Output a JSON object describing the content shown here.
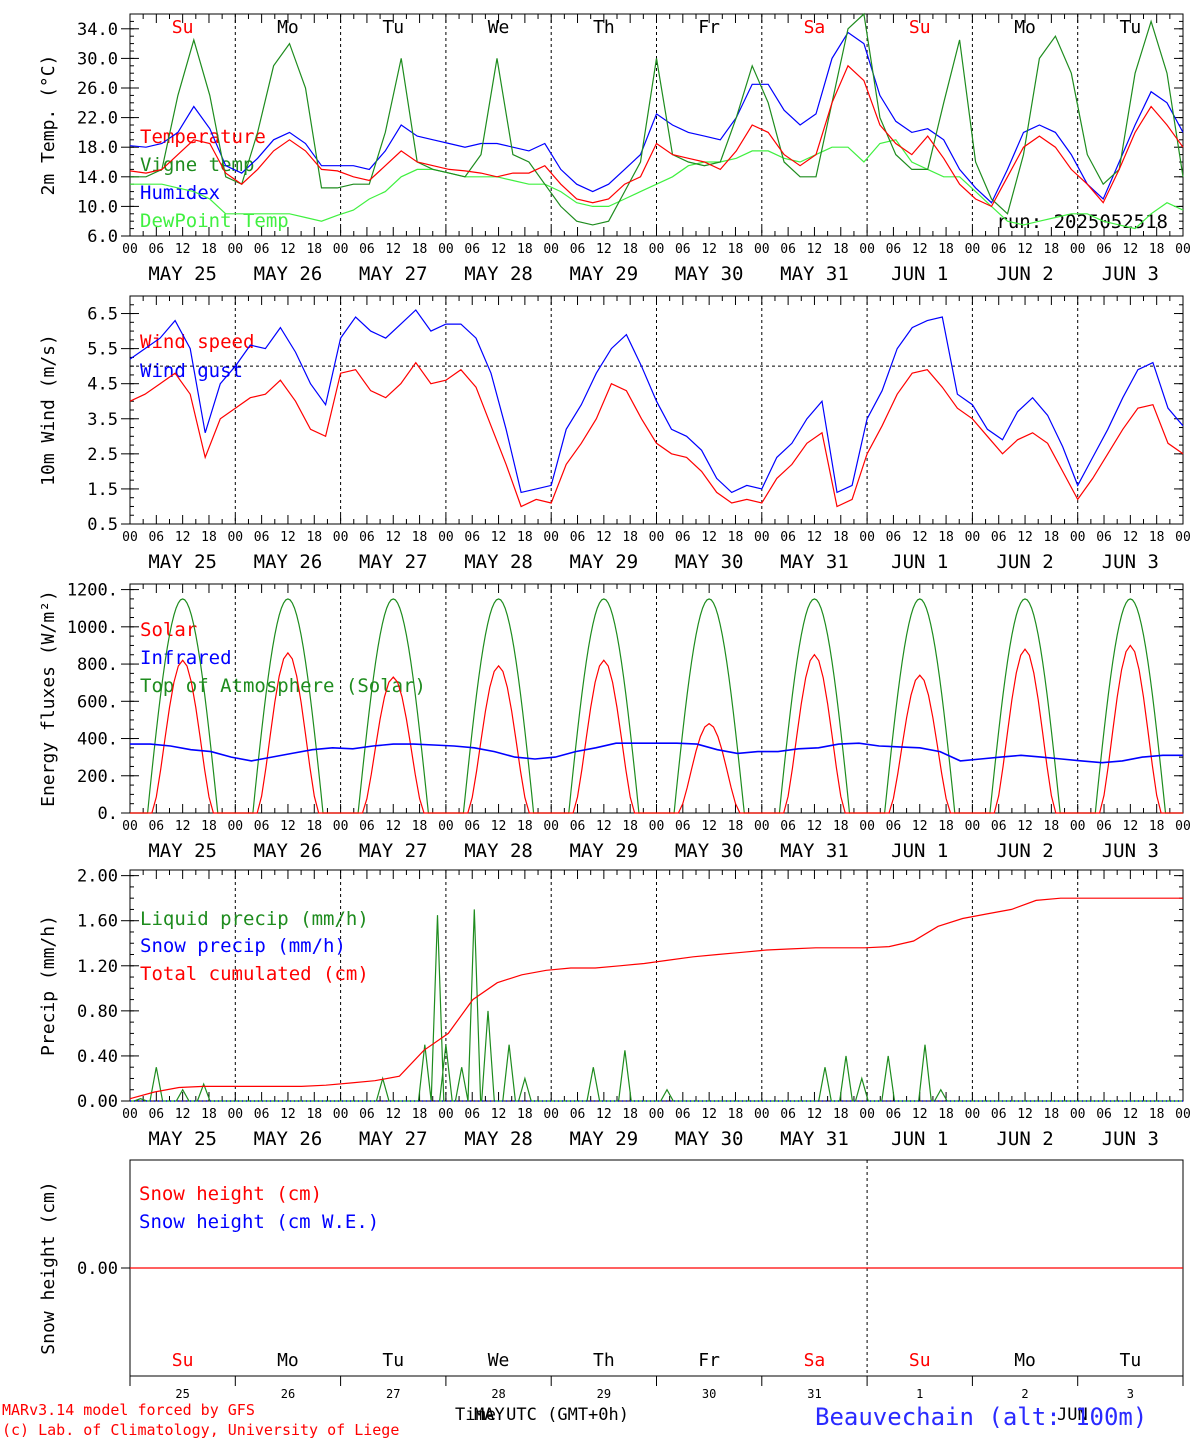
{
  "chart_data": [
    {
      "type": "line",
      "ylabel": "2m Temp. (°C)",
      "ylim": [
        6,
        36
      ],
      "yticks": [
        "6.0",
        "10.0",
        "14.0",
        "18.0",
        "22.0",
        "26.0",
        "30.0",
        "34.0"
      ],
      "annotation": "run: 2025052518",
      "weekdays": [
        {
          "label": "Su",
          "color": "#ff0000"
        },
        {
          "label": "Mo",
          "color": "#000000"
        },
        {
          "label": "Tu",
          "color": "#000000"
        },
        {
          "label": "We",
          "color": "#000000"
        },
        {
          "label": "Th",
          "color": "#000000"
        },
        {
          "label": "Fr",
          "color": "#000000"
        },
        {
          "label": "Sa",
          "color": "#ff0000"
        },
        {
          "label": "Su",
          "color": "#ff0000"
        },
        {
          "label": "Mo",
          "color": "#000000"
        },
        {
          "label": "Tu",
          "color": "#000000"
        }
      ],
      "series": [
        {
          "name": "Temperature",
          "color": "#ff0000",
          "values": [
            14.8,
            14.5,
            15,
            17,
            19,
            18.5,
            14.5,
            13,
            15,
            17.5,
            19,
            17.5,
            15,
            14.8,
            14,
            13.5,
            15.5,
            17.5,
            16,
            15.5,
            15,
            14.8,
            14.5,
            14,
            14.5,
            14.5,
            15.5,
            13,
            11,
            10.5,
            11,
            13,
            14,
            18.5,
            17,
            16.5,
            16,
            15,
            17.5,
            21,
            20,
            17,
            15.5,
            17,
            24,
            29,
            27,
            21,
            18.5,
            17,
            19.5,
            16.5,
            13,
            11,
            10,
            14,
            18,
            19.5,
            18,
            15,
            13,
            10.5,
            15,
            20,
            23.5,
            21,
            18
          ]
        },
        {
          "name": "Vigne temp",
          "color": "#1e8c1e",
          "values": [
            14,
            14,
            15,
            25,
            32.5,
            25,
            14,
            13,
            20,
            29,
            32,
            26,
            12.5,
            12.5,
            13,
            13,
            20,
            30,
            16,
            15,
            14.5,
            14,
            17,
            30,
            17,
            16,
            13,
            10,
            8,
            7.5,
            8,
            12,
            16,
            30,
            17,
            16,
            15.5,
            16,
            22,
            29,
            24,
            16,
            14,
            14,
            24,
            34,
            38,
            22,
            17,
            15,
            15,
            24,
            32.5,
            16,
            11,
            9,
            17,
            30,
            33,
            28,
            17,
            13,
            15,
            28,
            35,
            28,
            14
          ]
        },
        {
          "name": "Humidex",
          "color": "#0000ff",
          "values": [
            18.2,
            18,
            18.5,
            20,
            23.5,
            20.5,
            15.5,
            14.5,
            16.5,
            19,
            20,
            18.5,
            15.5,
            15.5,
            15.5,
            15,
            17.5,
            21,
            19.5,
            19,
            18.5,
            18,
            18.5,
            18.5,
            18,
            17.5,
            18.5,
            15,
            13,
            12,
            13,
            15,
            17,
            22.5,
            21,
            20,
            19.5,
            19,
            22,
            26.5,
            26.5,
            23,
            21,
            22.5,
            30,
            33.5,
            32,
            25,
            21.5,
            20,
            20.5,
            19,
            15,
            12.5,
            10.5,
            15,
            20,
            21,
            20,
            17,
            13,
            11,
            16,
            21,
            25.5,
            24,
            20
          ]
        },
        {
          "name": "DewPoint Temp",
          "color": "#40f040",
          "values": [
            13,
            13,
            13,
            12.5,
            12,
            11,
            9,
            9,
            9,
            9,
            9,
            8.5,
            8,
            8.8,
            9.5,
            11,
            12,
            14,
            15,
            15,
            14.5,
            14,
            14,
            14,
            13.5,
            13,
            13,
            12,
            10.5,
            10,
            10,
            11,
            12,
            13,
            14,
            15.5,
            16,
            16,
            16.5,
            17.5,
            17.5,
            16.5,
            16,
            17,
            18,
            18,
            16,
            18.5,
            19,
            16,
            15,
            14,
            14,
            12,
            10,
            8,
            7.5,
            8,
            8.5,
            9,
            9,
            8,
            7.5,
            7,
            9,
            10.5,
            9.5
          ]
        }
      ]
    },
    {
      "type": "line",
      "ylabel": "10m Wind (m/s)",
      "ylim": [
        0.5,
        7.0
      ],
      "yticks": [
        "0.5",
        "1.5",
        "2.5",
        "3.5",
        "4.5",
        "5.5",
        "6.5"
      ],
      "reference_line": 5.0,
      "series": [
        {
          "name": "Wind speed",
          "color": "#ff0000",
          "values": [
            4,
            4.2,
            4.5,
            4.8,
            4.2,
            2.4,
            3.5,
            3.8,
            4.1,
            4.2,
            4.6,
            4,
            3.2,
            3,
            4.8,
            4.9,
            4.3,
            4.1,
            4.5,
            5.1,
            4.5,
            4.6,
            4.9,
            4.4,
            3.3,
            2.2,
            1.0,
            1.2,
            1.1,
            2.2,
            2.8,
            3.5,
            4.5,
            4.3,
            3.5,
            2.8,
            2.5,
            2.4,
            2.0,
            1.4,
            1.1,
            1.2,
            1.1,
            1.8,
            2.2,
            2.8,
            3.1,
            1.0,
            1.2,
            2.5,
            3.3,
            4.2,
            4.8,
            4.9,
            4.4,
            3.8,
            3.5,
            3.0,
            2.5,
            2.9,
            3.1,
            2.8,
            2.0,
            1.2,
            1.8,
            2.5,
            3.2,
            3.8,
            3.9,
            2.8,
            2.5
          ]
        },
        {
          "name": "Wind gust",
          "color": "#0000ff",
          "values": [
            5.2,
            5.5,
            5.8,
            6.3,
            5.5,
            3.1,
            4.5,
            5.0,
            5.6,
            5.5,
            6.1,
            5.4,
            4.5,
            3.9,
            5.8,
            6.4,
            6.0,
            5.8,
            6.2,
            6.6,
            6.0,
            6.2,
            6.2,
            5.8,
            4.8,
            3.2,
            1.4,
            1.5,
            1.6,
            3.2,
            3.9,
            4.8,
            5.5,
            5.9,
            5.0,
            4.0,
            3.2,
            3.0,
            2.6,
            1.8,
            1.4,
            1.6,
            1.5,
            2.4,
            2.8,
            3.5,
            4.0,
            1.4,
            1.6,
            3.5,
            4.3,
            5.5,
            6.1,
            6.3,
            6.4,
            4.2,
            3.9,
            3.2,
            2.9,
            3.7,
            4.1,
            3.6,
            2.7,
            1.6,
            2.4,
            3.2,
            4.1,
            4.9,
            5.1,
            3.8,
            3.3
          ]
        }
      ]
    },
    {
      "type": "line",
      "ylabel": "Energy fluxes (W/m²)",
      "ylim": [
        0,
        1200
      ],
      "yticks": [
        "0.",
        "200.",
        "400.",
        "600.",
        "800.",
        "1000.",
        "1200."
      ],
      "series": [
        {
          "name": "Solar",
          "color": "#ff0000",
          "peaks": [
            820,
            860,
            730,
            790,
            820,
            480,
            850,
            740,
            880,
            900
          ]
        },
        {
          "name": "Infrared",
          "color": "#0000ff",
          "values": [
            370,
            370,
            360,
            340,
            330,
            300,
            280,
            300,
            320,
            340,
            350,
            345,
            360,
            370,
            370,
            365,
            360,
            350,
            330,
            300,
            290,
            300,
            330,
            350,
            375,
            375,
            375,
            375,
            370,
            340,
            320,
            330,
            330,
            345,
            350,
            370,
            375,
            360,
            355,
            350,
            330,
            280,
            290,
            300,
            310,
            300,
            290,
            280,
            270,
            280,
            300,
            310,
            310
          ]
        },
        {
          "name": "Top of Atmosphere (Solar)",
          "color": "#1e8c1e",
          "peak": 1150
        }
      ]
    },
    {
      "type": "line",
      "ylabel": "Precip (mm/h)",
      "ylim": [
        0,
        2.0
      ],
      "yticks": [
        "0.00",
        "0.40",
        "0.80",
        "1.20",
        "1.60",
        "2.00"
      ],
      "series": [
        {
          "name": "Liquid precip (mm/h)",
          "color": "#1e8c1e",
          "points": [
            [
              0.1,
              0.02
            ],
            [
              0.25,
              0.3
            ],
            [
              0.5,
              0.1
            ],
            [
              0.7,
              0.15
            ],
            [
              2.4,
              0.2
            ],
            [
              2.8,
              0.5
            ],
            [
              2.92,
              1.65
            ],
            [
              3.0,
              0.5
            ],
            [
              3.15,
              0.3
            ],
            [
              3.27,
              1.7
            ],
            [
              3.4,
              0.8
            ],
            [
              3.6,
              0.5
            ],
            [
              3.75,
              0.2
            ],
            [
              4.4,
              0.3
            ],
            [
              4.7,
              0.45
            ],
            [
              5.1,
              0.1
            ],
            [
              6.6,
              0.3
            ],
            [
              6.8,
              0.4
            ],
            [
              6.95,
              0.2
            ],
            [
              7.2,
              0.4
            ],
            [
              7.55,
              0.5
            ],
            [
              7.7,
              0.1
            ]
          ]
        },
        {
          "name": "Snow precip (mm/h)",
          "color": "#0000ff",
          "points": []
        },
        {
          "name": "Total cumulated (cm)",
          "color": "#ff0000",
          "values": [
            0.02,
            0.08,
            0.12,
            0.13,
            0.13,
            0.13,
            0.13,
            0.13,
            0.14,
            0.16,
            0.18,
            0.22,
            0.45,
            0.6,
            0.9,
            1.05,
            1.12,
            1.16,
            1.18,
            1.18,
            1.2,
            1.22,
            1.25,
            1.28,
            1.3,
            1.32,
            1.34,
            1.35,
            1.36,
            1.36,
            1.36,
            1.37,
            1.42,
            1.55,
            1.62,
            1.66,
            1.7,
            1.78,
            1.8,
            1.8,
            1.8,
            1.8,
            1.8,
            1.8
          ]
        }
      ]
    },
    {
      "type": "line",
      "ylabel": "Snow height (cm)",
      "yticks": [
        "0.00"
      ],
      "series": [
        {
          "name": "Snow height (cm)",
          "color": "#ff0000",
          "values": [
            0
          ]
        },
        {
          "name": "Snow height (cm W.E.)",
          "color": "#0000ff",
          "values": [
            0
          ]
        }
      ],
      "weekdays": [
        {
          "label": "Su",
          "color": "#ff0000"
        },
        {
          "label": "Mo",
          "color": "#000000"
        },
        {
          "label": "Tu",
          "color": "#000000"
        },
        {
          "label": "We",
          "color": "#000000"
        },
        {
          "label": "Th",
          "color": "#000000"
        },
        {
          "label": "Fr",
          "color": "#000000"
        },
        {
          "label": "Sa",
          "color": "#ff0000"
        },
        {
          "label": "Su",
          "color": "#ff0000"
        },
        {
          "label": "Mo",
          "color": "#000000"
        },
        {
          "label": "Tu",
          "color": "#000000"
        }
      ],
      "daynums": [
        "25",
        "26",
        "27",
        "28",
        "29",
        "30",
        "31",
        "1",
        "2",
        "3"
      ]
    }
  ],
  "x_axis": {
    "hours": [
      "00",
      "06",
      "12",
      "18"
    ],
    "final_hour": "00",
    "dates": [
      "MAY 25",
      "MAY 26",
      "MAY 27",
      "MAY 28",
      "MAY 29",
      "MAY 30",
      "MAY 31",
      "JUN  1",
      "JUN  2",
      "JUN  3"
    ]
  },
  "footer": {
    "credit1": "MARv3.14 model forced by GFS",
    "credit2": "(c) Lab. of Climatology, University of Liege",
    "xlabel": "Time UTC (GMT+0h)",
    "month1": "MAY",
    "month2": "JUN",
    "station": "Beauvechain (alt: 100m)"
  }
}
